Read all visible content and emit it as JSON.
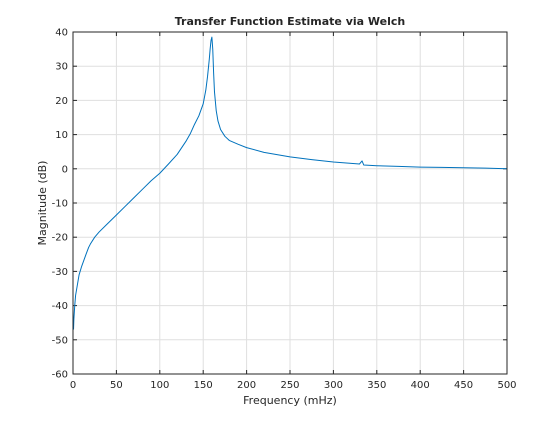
{
  "chart_data": {
    "type": "line",
    "title": "Transfer Function Estimate via Welch",
    "xlabel": "Frequency (mHz)",
    "ylabel": "Magnitude (dB)",
    "xlim": [
      0,
      500
    ],
    "ylim": [
      -60,
      40
    ],
    "xticks": [
      0,
      50,
      100,
      150,
      200,
      250,
      300,
      350,
      400,
      450,
      500
    ],
    "yticks": [
      -60,
      -50,
      -40,
      -30,
      -20,
      -10,
      0,
      10,
      20,
      30,
      40
    ],
    "grid": true,
    "line_color": "#0072bd",
    "series": [
      {
        "x": [
          0.6,
          1,
          2,
          3,
          5,
          7,
          10,
          15,
          18,
          20,
          25,
          30,
          40,
          50,
          60,
          70,
          80,
          90,
          100,
          110,
          120,
          130,
          135,
          140,
          145,
          150,
          153,
          155,
          157,
          158,
          159,
          160,
          161,
          162,
          163,
          165,
          167,
          170,
          175,
          180,
          190,
          200,
          220,
          250,
          275,
          300,
          330,
          333,
          335,
          350,
          375,
          400,
          425,
          450,
          475,
          490,
          500
        ],
        "y": [
          -47,
          -44,
          -40,
          -37,
          -34,
          -31,
          -28.5,
          -25,
          -23,
          -22,
          -20,
          -18.5,
          -16,
          -13.5,
          -11,
          -8.5,
          -6,
          -3.5,
          -1.3,
          1.4,
          4.2,
          8,
          10.2,
          13,
          15.5,
          19,
          23,
          27,
          32,
          35,
          37.5,
          38.5,
          35,
          28,
          22.5,
          17,
          14,
          11.5,
          9.5,
          8.3,
          7.2,
          6.2,
          4.8,
          3.5,
          2.7,
          2,
          1.4,
          2.3,
          1.1,
          0.9,
          0.7,
          0.5,
          0.4,
          0.3,
          0.2,
          0.1,
          0
        ]
      }
    ]
  }
}
